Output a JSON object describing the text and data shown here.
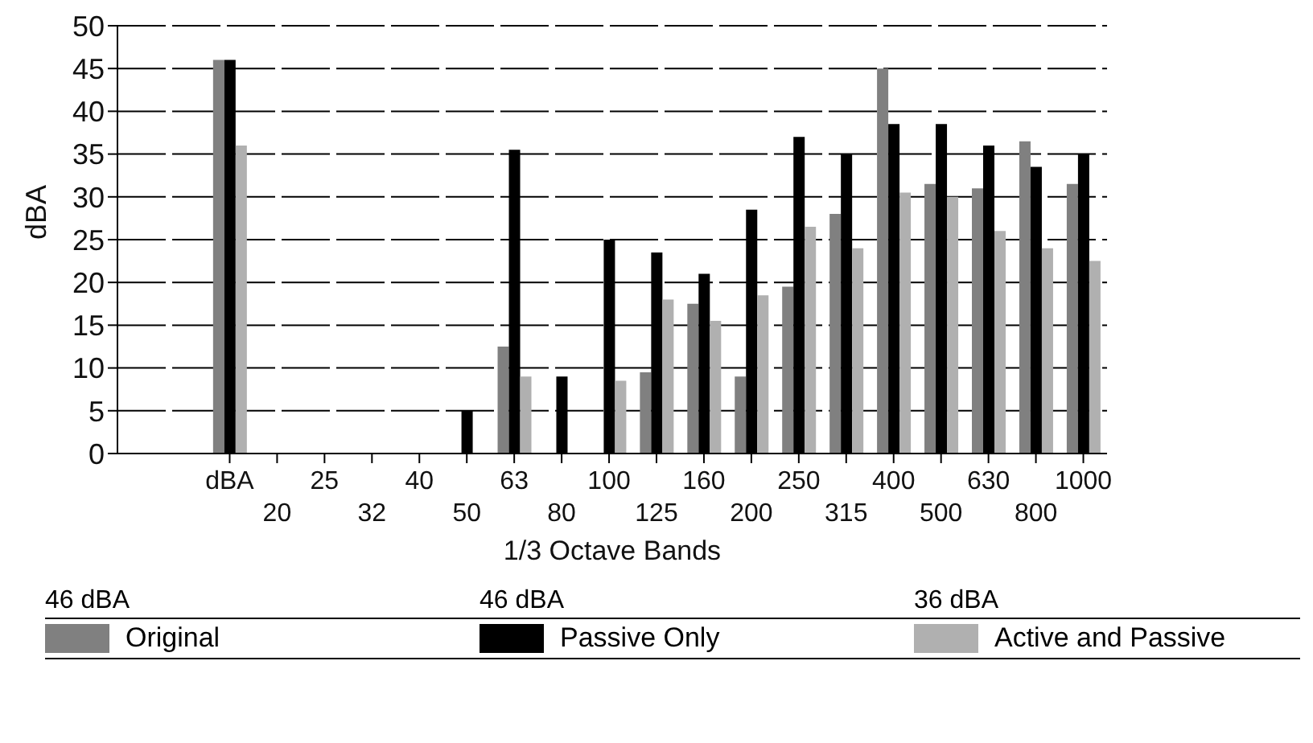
{
  "chart_data": {
    "type": "bar",
    "xlabel": "1/3 Octave Bands",
    "ylabel": "dBA",
    "categories": [
      "dBA",
      "20",
      "25",
      "32",
      "40",
      "50",
      "63",
      "80",
      "100",
      "125",
      "160",
      "200",
      "250",
      "315",
      "400",
      "500",
      "630",
      "800",
      "1000"
    ],
    "series": [
      {
        "name": "Original",
        "color": "#808080",
        "values": [
          46,
          null,
          null,
          null,
          null,
          null,
          12.5,
          null,
          null,
          9.5,
          17.5,
          9,
          19.5,
          28,
          45,
          31.5,
          31,
          36.5,
          31.5
        ]
      },
      {
        "name": "Passive Only",
        "color": "#000000",
        "values": [
          46,
          null,
          null,
          null,
          null,
          5,
          35.5,
          9,
          25,
          23.5,
          21,
          28.5,
          37,
          35,
          38.5,
          38.5,
          36,
          33.5,
          35
        ]
      },
      {
        "name": "Active and Passive",
        "color": "#b0b0b0",
        "values": [
          36,
          null,
          null,
          null,
          null,
          null,
          9,
          null,
          8.5,
          18,
          15.5,
          18.5,
          26.5,
          24,
          30.5,
          30,
          26,
          24,
          22.5
        ]
      }
    ],
    "ylim": [
      0,
      50
    ],
    "yticks": [
      0,
      5,
      10,
      15,
      20,
      25,
      30,
      35,
      40,
      45,
      50
    ],
    "grid": "y",
    "legend": "bottom",
    "annotations": [
      "46 dBA",
      "46 dBA",
      "36 dBA"
    ]
  }
}
